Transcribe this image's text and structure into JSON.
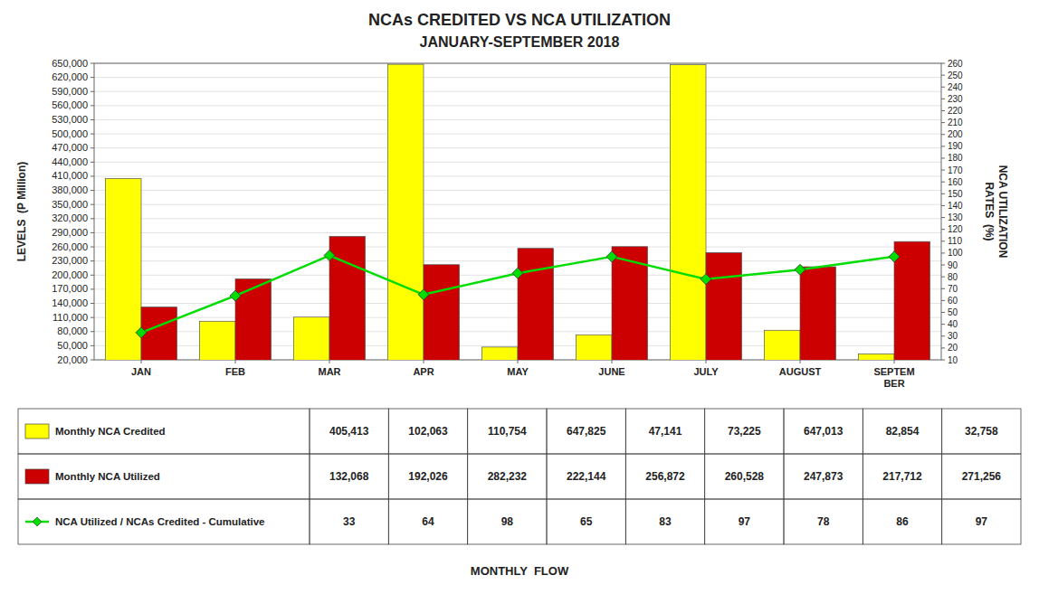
{
  "chart_data": {
    "type": "bar",
    "title": "NCAs CREDITED VS NCA UTILIZATION",
    "subtitle": "JANUARY-SEPTEMBER 2018",
    "xlabel": "MONTHLY  FLOW",
    "ylabel": "LEVELS  (P Million)",
    "y2label": "NCA UTILIZATION\nRATES  (%)",
    "categories": [
      "JAN",
      "FEB",
      "MAR",
      "APR",
      "MAY",
      "JUNE",
      "JULY",
      "AUGUST",
      "SEPTEM\nBER"
    ],
    "series": [
      {
        "name": "Monthly NCA Credited",
        "type": "bar",
        "color": "#FFFF00",
        "values": [
          405413,
          102063,
          110754,
          647825,
          47141,
          73225,
          647013,
          82854,
          32758
        ],
        "value_labels": [
          "405,413",
          "102,063",
          "110,754",
          "647,825",
          "47,141",
          "73,225",
          "647,013",
          "82,854",
          "32,758"
        ]
      },
      {
        "name": "Monthly NCA Utilized",
        "type": "bar",
        "color": "#CC0000",
        "values": [
          132068,
          192026,
          282232,
          222144,
          256872,
          260528,
          247873,
          217712,
          271256
        ],
        "value_labels": [
          "132,068",
          "192,026",
          "282,232",
          "222,144",
          "256,872",
          "260,528",
          "247,873",
          "217,712",
          "271,256"
        ]
      },
      {
        "name": "NCA Utilized / NCAs Credited - Cumulative",
        "type": "line",
        "axis": "y2",
        "color": "#00DD00",
        "marker": "diamond",
        "values": [
          33,
          64,
          98,
          65,
          83,
          97,
          78,
          86,
          97
        ]
      }
    ],
    "ylim": [
      20000,
      650000
    ],
    "yticks": [
      {
        "value": 20000,
        "label": "20,000"
      },
      {
        "value": 50000,
        "label": "50,000"
      },
      {
        "value": 80000,
        "label": "80,000"
      },
      {
        "value": 110000,
        "label": "110,000"
      },
      {
        "value": 140000,
        "label": "140,000"
      },
      {
        "value": 170000,
        "label": "170,000"
      },
      {
        "value": 200000,
        "label": "200,000"
      },
      {
        "value": 230000,
        "label": "230,000"
      },
      {
        "value": 260000,
        "label": "260,000"
      },
      {
        "value": 290000,
        "label": "290,000"
      },
      {
        "value": 320000,
        "label": "320,000"
      },
      {
        "value": 350000,
        "label": "350,000"
      },
      {
        "value": 380000,
        "label": "380,000"
      },
      {
        "value": 410000,
        "label": "410,000"
      },
      {
        "value": 440000,
        "label": "440,000"
      },
      {
        "value": 470000,
        "label": "470,000"
      },
      {
        "value": 500000,
        "label": "500,000"
      },
      {
        "value": 530000,
        "label": "530,000"
      },
      {
        "value": 560000,
        "label": "560,000"
      },
      {
        "value": 590000,
        "label": "590,000"
      },
      {
        "value": 620000,
        "label": "620,000"
      },
      {
        "value": 650000,
        "label": "650,000"
      }
    ],
    "y2lim": [
      10,
      260
    ],
    "y2ticks": [
      10,
      20,
      30,
      40,
      50,
      60,
      70,
      80,
      90,
      100,
      110,
      120,
      130,
      140,
      150,
      160,
      170,
      180,
      190,
      200,
      210,
      220,
      230,
      240,
      250,
      260
    ],
    "grid": true
  }
}
